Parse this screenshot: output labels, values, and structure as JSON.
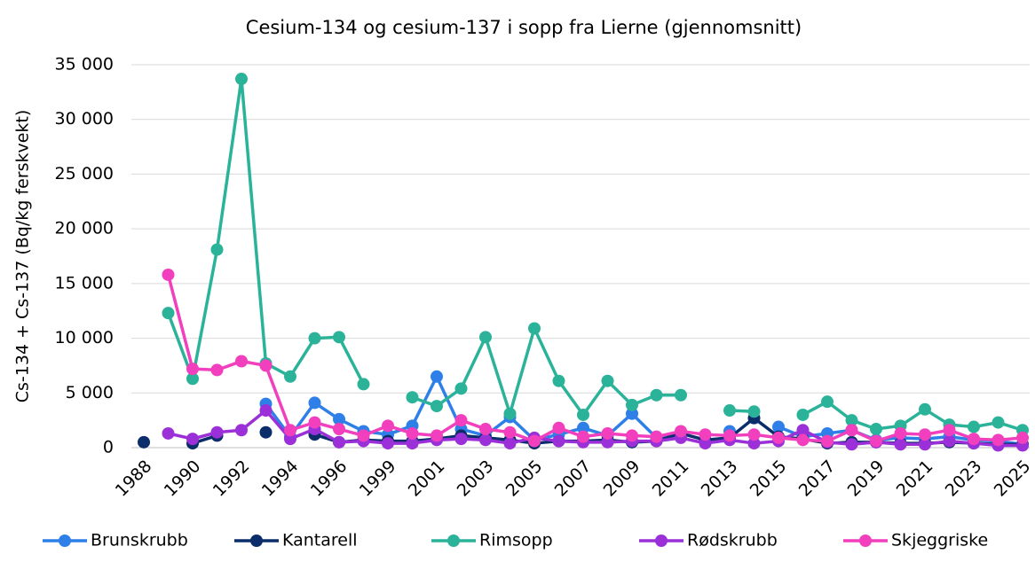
{
  "chart_data": {
    "type": "line",
    "title": "Cesium-134 og cesium-137 i sopp fra Lierne (gjennomsnitt)",
    "y_label": "Cs-134 + Cs-137 (Bq/kg ferskvekt)",
    "categories": [
      "1988",
      null,
      "1990",
      null,
      "1992",
      null,
      "1994",
      null,
      "1996",
      null,
      "1999",
      null,
      "2001",
      null,
      "2003",
      null,
      "2005",
      null,
      "2007",
      null,
      "2009",
      null,
      "2011",
      null,
      "2013",
      null,
      "2015",
      null,
      "2017",
      null,
      "2019",
      null,
      "2021",
      null,
      "2023",
      null,
      "2025"
    ],
    "ylim": [
      0,
      35000
    ],
    "yticks": [
      0,
      {
        "value": 5000,
        "label": "5 000"
      },
      {
        "value": 10000,
        "label": "10 000"
      },
      {
        "value": 15000,
        "label": "15 000"
      },
      {
        "value": 20000,
        "label": "20 000"
      },
      {
        "value": 25000,
        "label": "25 000"
      },
      {
        "value": 30000,
        "label": "30 000"
      },
      {
        "value": 35000,
        "label": "35 000"
      }
    ],
    "grid": true,
    "legend": "bottom",
    "series": [
      {
        "name": "Brunskrubb",
        "color": "#2f7fe8",
        "values": [
          null,
          null,
          null,
          null,
          null,
          4000,
          1000,
          4100,
          2600,
          1500,
          1200,
          2000,
          6500,
          1700,
          1100,
          2800,
          700,
          1200,
          1800,
          1100,
          3100,
          900,
          1300,
          null,
          1500,
          null,
          1900,
          1000,
          1300,
          1600,
          700,
          900,
          800,
          1000,
          700,
          600,
          300
        ]
      },
      {
        "name": "Kantarell",
        "color": "#0b2e6b",
        "values": [
          500,
          null,
          400,
          1100,
          null,
          1400,
          null,
          1200,
          500,
          700,
          600,
          600,
          800,
          1100,
          900,
          700,
          400,
          600,
          600,
          700,
          500,
          600,
          1300,
          700,
          900,
          2700,
          1000,
          800,
          400,
          500,
          500,
          400,
          400,
          500,
          400,
          300,
          300
        ]
      },
      {
        "name": "Rimsopp",
        "color": "#2bb39a",
        "values": [
          null,
          12300,
          6300,
          18100,
          33700,
          7700,
          6500,
          10000,
          10100,
          5800,
          null,
          4600,
          3800,
          5400,
          10100,
          3100,
          10900,
          6100,
          3000,
          6100,
          3900,
          4800,
          4800,
          null,
          3400,
          3300,
          null,
          3000,
          4200,
          2500,
          1700,
          2000,
          3500,
          2100,
          1900,
          2300,
          1600
        ]
      },
      {
        "name": "Rødskrubb",
        "color": "#9b30d9",
        "values": [
          null,
          1300,
          800,
          1400,
          1600,
          3400,
          800,
          1700,
          500,
          600,
          400,
          400,
          700,
          800,
          700,
          400,
          900,
          600,
          500,
          500,
          600,
          600,
          900,
          400,
          700,
          400,
          600,
          1600,
          500,
          300,
          500,
          300,
          300,
          600,
          400,
          200,
          200
        ]
      },
      {
        "name": "Skjeggriske",
        "color": "#f23fbd",
        "values": [
          null,
          15800,
          7200,
          7100,
          7900,
          7500,
          1600,
          2300,
          1700,
          1100,
          2000,
          1300,
          1100,
          2500,
          1700,
          1400,
          600,
          1800,
          1000,
          1300,
          1100,
          1000,
          1500,
          1200,
          1100,
          1200,
          900,
          700,
          600,
          1600,
          600,
          1300,
          1200,
          1600,
          800,
          700,
          900
        ]
      }
    ]
  }
}
